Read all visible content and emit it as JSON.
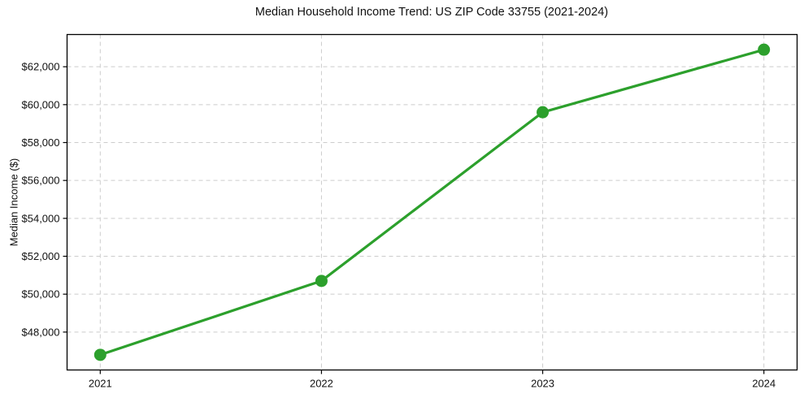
{
  "chart_data": {
    "type": "line",
    "title": "Median Household Income Trend: US ZIP Code 33755 (2021-2024)",
    "xlabel": "",
    "ylabel": "Median Income ($)",
    "x": [
      2021,
      2022,
      2023,
      2024
    ],
    "x_tick_labels": [
      "2021",
      "2022",
      "2023",
      "2024"
    ],
    "series": [
      {
        "name": "Median Household Income",
        "values": [
          46800,
          50700,
          59600,
          62900
        ]
      }
    ],
    "y_ticks": [
      48000,
      50000,
      52000,
      54000,
      56000,
      58000,
      60000,
      62000
    ],
    "y_tick_labels": [
      "$48,000",
      "$50,000",
      "$52,000",
      "$54,000",
      "$56,000",
      "$58,000",
      "$60,000",
      "$62,000"
    ],
    "xlim": [
      2020.85,
      2024.15
    ],
    "ylim": [
      46000,
      63700
    ],
    "grid": true,
    "grid_style": "dashed",
    "legend_position": "none",
    "colors": {
      "line": "#2ca02c",
      "marker": "#2ca02c",
      "grid": "#cccccc",
      "axis": "#000000",
      "text": "#111111",
      "background": "#ffffff"
    },
    "line_width": 3.2,
    "marker_radius": 7.5
  }
}
